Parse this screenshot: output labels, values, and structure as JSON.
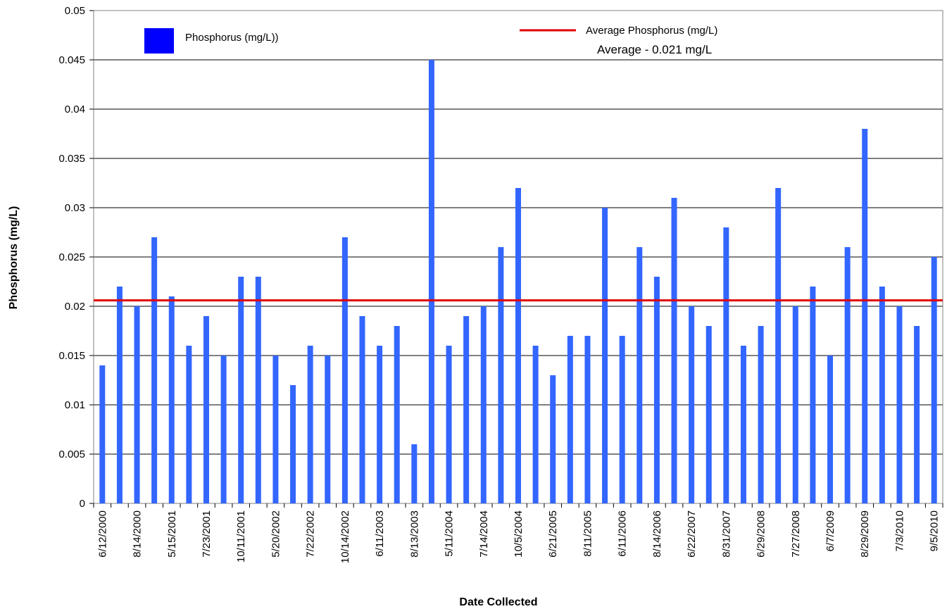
{
  "chart_data": {
    "type": "bar",
    "xlabel": "Date Collected",
    "ylabel": "Phosphorus (mg/L)",
    "ylim": [
      0,
      0.05
    ],
    "ytick_labels": [
      "0",
      "0.005",
      "0.01",
      "0.015",
      "0.02",
      "0.025",
      "0.03",
      "0.035",
      "0.04",
      "0.045",
      "0.05"
    ],
    "grid": true,
    "legend_placement": "top",
    "series": [
      {
        "name": "Phosphorus (mg/L))",
        "color": "#3366ff",
        "values": [
          0.014,
          0.022,
          0.02,
          0.027,
          0.021,
          0.016,
          0.019,
          0.015,
          0.023,
          0.023,
          0.015,
          0.012,
          0.016,
          0.015,
          0.027,
          0.019,
          0.016,
          0.018,
          0.006,
          0.045,
          0.016,
          0.019,
          0.02,
          0.026,
          0.032,
          0.016,
          0.013,
          0.017,
          0.017,
          0.03,
          0.017,
          0.026,
          0.023,
          0.031,
          0.02,
          0.018,
          0.028,
          0.016,
          0.018,
          0.032,
          0.02,
          0.022,
          0.015,
          0.026,
          0.038,
          0.022,
          0.02,
          0.018,
          0.025
        ]
      }
    ],
    "category_labels": [
      "6/12/2000",
      "",
      "8/14/2000",
      "",
      "5/15/2001",
      "",
      "7/23/2001",
      "",
      "10/11/2001",
      "",
      "5/20/2002",
      "",
      "7/22/2002",
      "",
      "10/14/2002",
      "",
      "6/11/2003",
      "",
      "8/13/2003",
      "",
      "5/11/2004",
      "",
      "7/14/2004",
      "",
      "10/5/2004",
      "",
      "6/21/2005",
      "",
      "8/11/2005",
      "",
      "6/11/2006",
      "",
      "8/14/2006",
      "",
      "6/22/2007",
      "",
      "8/31/2007",
      "",
      "6/29/2008",
      "",
      "7/27/2008",
      "",
      "6/7/2009",
      "",
      "8/29/2009",
      "",
      "7/3/2010",
      "",
      "9/5/2010"
    ],
    "average_line": {
      "name": "Average Phosphorus  (mg/L)",
      "value": 0.0206,
      "color": "#e00000",
      "annotation": "Average - 0.021 mg/L"
    }
  }
}
